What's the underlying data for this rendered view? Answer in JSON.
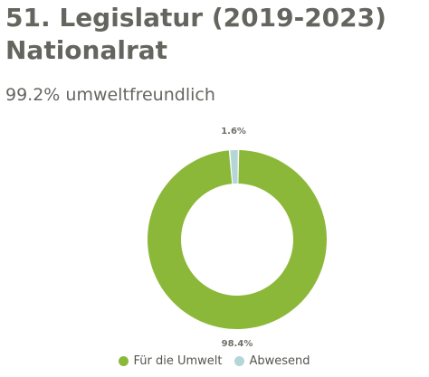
{
  "header": {
    "title_line1": "51. Legislatur (2019-2023)",
    "title_line2": "Nationalrat",
    "subtitle": "99.2% umweltfreundlich"
  },
  "chart_data": {
    "type": "pie",
    "donut": true,
    "title": "",
    "categories": [
      "Für die Umwelt",
      "Abwesend"
    ],
    "values": [
      98.4,
      1.6
    ],
    "data_labels": [
      "98.4%",
      "1.6%"
    ],
    "colors": [
      "#8cb83a",
      "#b5d6d6"
    ],
    "legend_position": "bottom-center"
  }
}
